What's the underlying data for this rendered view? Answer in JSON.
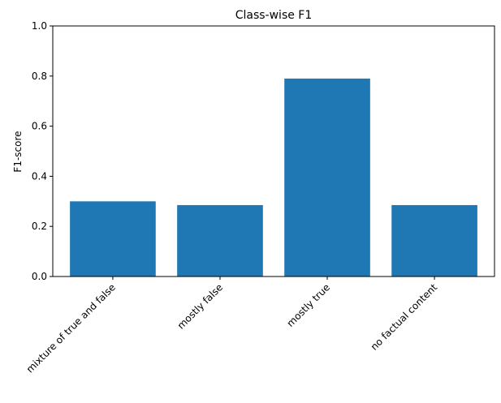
{
  "chart_data": {
    "type": "bar",
    "title": "Class-wise F1",
    "xlabel": "",
    "ylabel": "F1-score",
    "categories": [
      "mixture of true and false",
      "mostly false",
      "mostly true",
      "no factual content"
    ],
    "values": [
      0.3,
      0.285,
      0.79,
      0.285
    ],
    "ylim": [
      0,
      1.0
    ],
    "yticks": [
      "0.0",
      "0.2",
      "0.4",
      "0.6",
      "0.8",
      "1.0"
    ],
    "bar_color": "#1f77b4",
    "grid": false,
    "legend": "none"
  }
}
